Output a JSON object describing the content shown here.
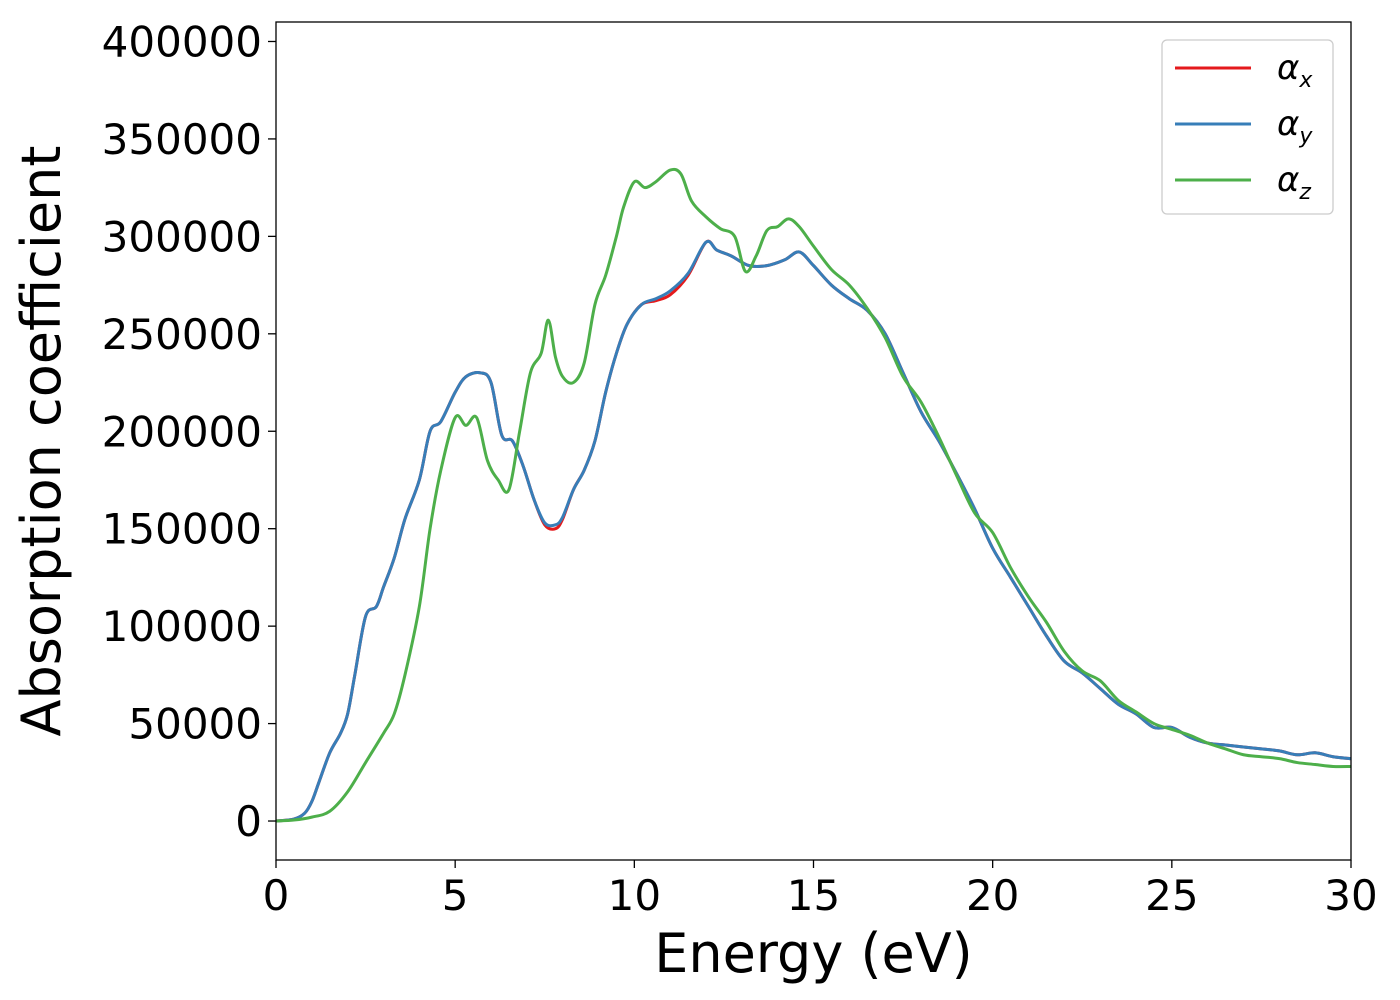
{
  "chart_data": {
    "type": "line",
    "title": "",
    "xlabel": "Energy (eV)",
    "ylabel": "Absorption coefficient",
    "xlim": [
      0,
      30
    ],
    "ylim": [
      -20000,
      410000
    ],
    "xticks": [
      0,
      5,
      10,
      15,
      20,
      25,
      30
    ],
    "yticks": [
      0,
      50000,
      100000,
      150000,
      200000,
      250000,
      300000,
      350000,
      400000
    ],
    "grid": false,
    "legend_position": "top-right",
    "series": [
      {
        "name": "α_x",
        "legend_symbol": "α",
        "legend_sub": "x",
        "color": "#e41a1c",
        "x": [
          0,
          0.5,
          0.8,
          1.0,
          1.2,
          1.5,
          1.8,
          2.0,
          2.2,
          2.5,
          2.8,
          3.0,
          3.3,
          3.6,
          4.0,
          4.3,
          4.6,
          5.0,
          5.3,
          5.7,
          6.0,
          6.3,
          6.6,
          6.9,
          7.2,
          7.5,
          7.8,
          8.0,
          8.3,
          8.6,
          8.9,
          9.2,
          9.5,
          9.8,
          10.2,
          10.6,
          11.0,
          11.5,
          12.0,
          12.3,
          12.7,
          13.2,
          13.7,
          14.2,
          14.6,
          15.0,
          15.5,
          16.0,
          16.5,
          17.0,
          17.5,
          18.0,
          18.5,
          19.0,
          19.5,
          20.0,
          20.5,
          21.0,
          21.5,
          22.0,
          22.5,
          23.0,
          23.5,
          24.0,
          24.5,
          25.0,
          25.5,
          26.0,
          26.5,
          27.0,
          27.5,
          28.0,
          28.5,
          29.0,
          29.5,
          30.0
        ],
        "values": [
          0,
          1000,
          4000,
          10000,
          20000,
          35000,
          45000,
          55000,
          75000,
          105000,
          110000,
          120000,
          135000,
          155000,
          175000,
          200000,
          205000,
          220000,
          228000,
          230000,
          225000,
          198000,
          195000,
          182000,
          165000,
          152000,
          150000,
          155000,
          170000,
          180000,
          195000,
          220000,
          240000,
          255000,
          265000,
          267000,
          270000,
          280000,
          297000,
          293000,
          290000,
          285000,
          285000,
          288000,
          292000,
          285000,
          275000,
          268000,
          262000,
          250000,
          230000,
          210000,
          195000,
          178000,
          160000,
          140000,
          125000,
          110000,
          95000,
          82000,
          76000,
          68000,
          60000,
          55000,
          48000,
          48000,
          43000,
          40000,
          39000,
          38000,
          37000,
          36000,
          34000,
          35000,
          33000,
          32000
        ]
      },
      {
        "name": "α_y",
        "legend_symbol": "α",
        "legend_sub": "y",
        "color": "#377eb8",
        "x": [
          0,
          0.5,
          0.8,
          1.0,
          1.2,
          1.5,
          1.8,
          2.0,
          2.2,
          2.5,
          2.8,
          3.0,
          3.3,
          3.6,
          4.0,
          4.3,
          4.6,
          5.0,
          5.3,
          5.7,
          6.0,
          6.3,
          6.6,
          6.9,
          7.2,
          7.5,
          7.8,
          8.0,
          8.3,
          8.6,
          8.9,
          9.2,
          9.5,
          9.8,
          10.2,
          10.6,
          11.0,
          11.5,
          12.0,
          12.3,
          12.7,
          13.2,
          13.7,
          14.2,
          14.6,
          15.0,
          15.5,
          16.0,
          16.5,
          17.0,
          17.5,
          18.0,
          18.5,
          19.0,
          19.5,
          20.0,
          20.5,
          21.0,
          21.5,
          22.0,
          22.5,
          23.0,
          23.5,
          24.0,
          24.5,
          25.0,
          25.5,
          26.0,
          26.5,
          27.0,
          27.5,
          28.0,
          28.5,
          29.0,
          29.5,
          30.0
        ],
        "values": [
          0,
          1000,
          4000,
          10000,
          20000,
          35000,
          45000,
          55000,
          75000,
          105000,
          110000,
          120000,
          135000,
          155000,
          175000,
          200000,
          205000,
          220000,
          228000,
          230000,
          225000,
          198000,
          195000,
          182000,
          165000,
          153000,
          152000,
          156000,
          170000,
          180000,
          195000,
          220000,
          240000,
          255000,
          265000,
          268000,
          272000,
          281000,
          297000,
          293000,
          290000,
          285000,
          285000,
          288000,
          292000,
          285000,
          275000,
          268000,
          262000,
          250000,
          230000,
          210000,
          195000,
          178000,
          160000,
          140000,
          125000,
          110000,
          95000,
          82000,
          76000,
          68000,
          60000,
          55000,
          48000,
          48000,
          43000,
          40000,
          39000,
          38000,
          37000,
          36000,
          34000,
          35000,
          33000,
          32000
        ]
      },
      {
        "name": "α_z",
        "legend_symbol": "α",
        "legend_sub": "z",
        "color": "#4daf4a",
        "x": [
          0,
          0.5,
          1.0,
          1.5,
          2.0,
          2.5,
          3.0,
          3.3,
          3.6,
          4.0,
          4.3,
          4.6,
          5.0,
          5.3,
          5.6,
          5.9,
          6.2,
          6.5,
          6.8,
          7.1,
          7.4,
          7.6,
          7.8,
          8.0,
          8.3,
          8.6,
          8.9,
          9.2,
          9.5,
          9.7,
          10.0,
          10.3,
          10.6,
          11.0,
          11.3,
          11.6,
          12.0,
          12.4,
          12.8,
          13.1,
          13.4,
          13.7,
          14.0,
          14.3,
          14.6,
          15.0,
          15.5,
          16.0,
          16.5,
          17.0,
          17.5,
          18.0,
          18.5,
          19.0,
          19.5,
          20.0,
          20.5,
          21.0,
          21.5,
          22.0,
          22.5,
          23.0,
          23.5,
          24.0,
          24.5,
          25.0,
          25.5,
          26.0,
          26.5,
          27.0,
          27.5,
          28.0,
          28.5,
          29.0,
          29.5,
          30.0
        ],
        "values": [
          0,
          500,
          2000,
          5000,
          15000,
          30000,
          45000,
          55000,
          75000,
          110000,
          150000,
          180000,
          207000,
          203000,
          207000,
          185000,
          175000,
          170000,
          200000,
          230000,
          240000,
          257000,
          238000,
          228000,
          225000,
          235000,
          265000,
          280000,
          300000,
          315000,
          328000,
          325000,
          328000,
          334000,
          332000,
          318000,
          310000,
          304000,
          300000,
          282000,
          290000,
          303000,
          305000,
          309000,
          305000,
          295000,
          283000,
          275000,
          263000,
          248000,
          228000,
          215000,
          197000,
          177000,
          158000,
          148000,
          130000,
          115000,
          102000,
          87000,
          77000,
          72000,
          62000,
          56000,
          50000,
          47000,
          44000,
          40000,
          37000,
          34000,
          33000,
          32000,
          30000,
          29000,
          28000,
          28000
        ]
      }
    ]
  }
}
